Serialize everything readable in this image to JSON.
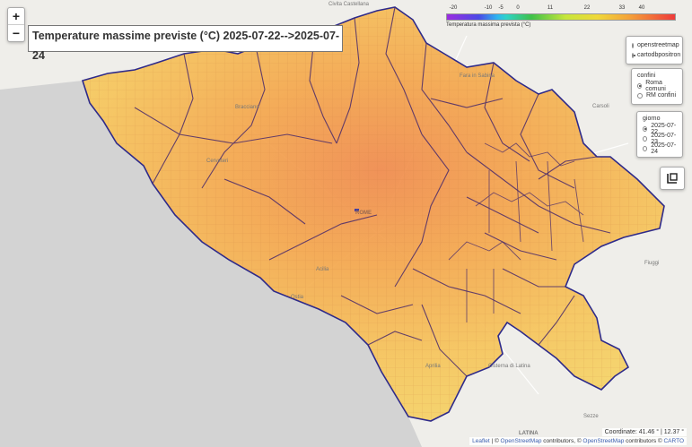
{
  "title": "Temperature massime previste (°C)  2025-07-22-->2025-07-24",
  "zoom": {
    "in_label": "+",
    "out_label": "−"
  },
  "legend": {
    "ticks": [
      "-20",
      "-10",
      "-5",
      "0",
      "11",
      "22",
      "33",
      "40"
    ],
    "caption": "Temperatura massima prevista (°C)"
  },
  "basemap_panel": {
    "options": [
      {
        "label": "openstreetmap",
        "selected": false
      },
      {
        "label": "cartodbpositron",
        "selected": true
      }
    ]
  },
  "confini_panel": {
    "header": "confini",
    "options": [
      {
        "label": "Roma comuni",
        "selected": true
      },
      {
        "label": "RM confini",
        "selected": false
      }
    ]
  },
  "giorno_panel": {
    "header": "giorno",
    "options": [
      {
        "label": "2025-07-22",
        "selected": true
      },
      {
        "label": "2025-07-23",
        "selected": false
      },
      {
        "label": "2025-07-24",
        "selected": false
      }
    ]
  },
  "coordinate": "Coordinate: 41.46 ° | 12.37 °",
  "attribution": {
    "leaflet": "Leaflet",
    "sep1": " | © ",
    "osm": "OpenStreetMap",
    "mid": " contributors, © ",
    "osm2": "OpenStreetMap",
    "mid2": " contributors © ",
    "carto": "CARTO"
  },
  "places": [
    {
      "name": "Civita Castellana"
    },
    {
      "name": "Fara in Sabina"
    },
    {
      "name": "Carsoli"
    },
    {
      "name": "ROME"
    },
    {
      "name": "Fiuggi"
    },
    {
      "name": "Aprilia"
    },
    {
      "name": "Cisterna di Latina"
    },
    {
      "name": "LATINA"
    },
    {
      "name": "Sezze"
    },
    {
      "name": "Bracciano"
    },
    {
      "name": "Cerveteri"
    },
    {
      "name": "Ostia"
    },
    {
      "name": "Acilia"
    }
  ],
  "colors": {
    "fill_low": "#f6c85a",
    "fill_mid": "#f4a24a",
    "fill_high": "#ef6f4a",
    "border": "#3a2a7a",
    "sea": "#d3d3d3"
  }
}
